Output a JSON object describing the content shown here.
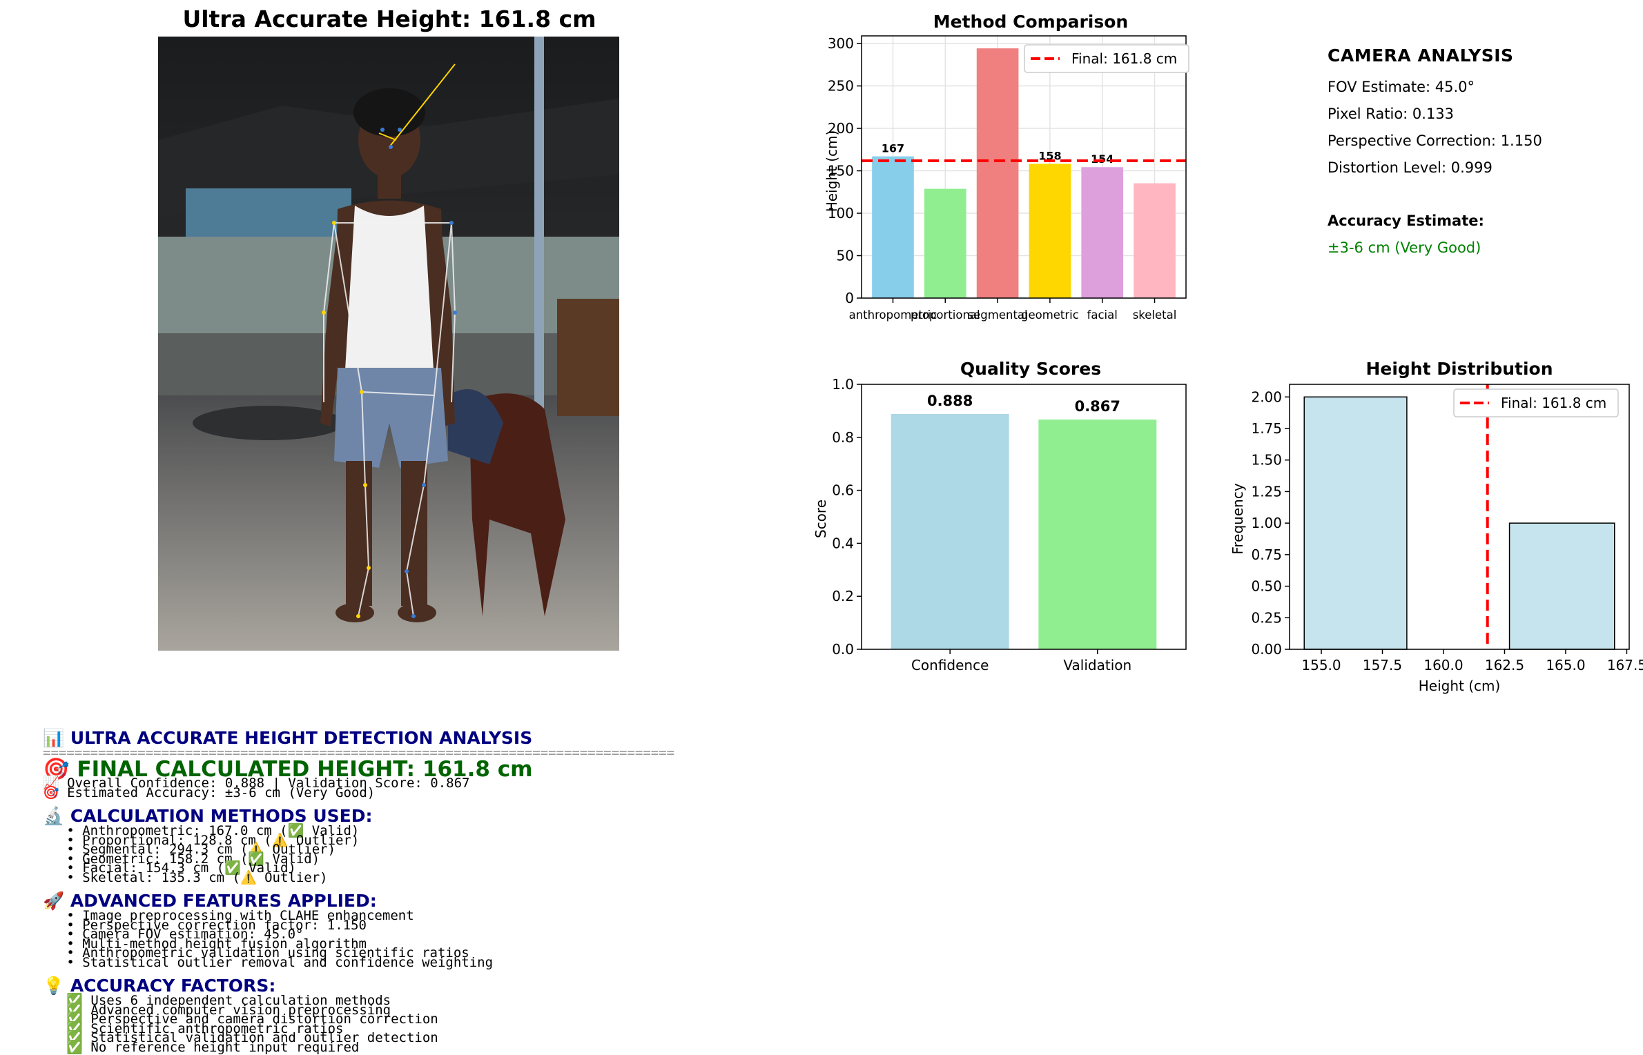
{
  "photo": {
    "title": "Ultra Accurate Height: 161.8 cm"
  },
  "colors": {
    "skyblue": "#87ceeb",
    "lightgreen": "#90ee90",
    "lightcoral": "#f08080",
    "gold": "#ffd700",
    "plum": "#dda0dd",
    "lightpink": "#ffb6c1",
    "lightblue": "#add8e6",
    "final_line": "#ff0000",
    "good_green": "#008000",
    "report_navy": "#000080",
    "report_green": "#006400"
  },
  "camera": {
    "title": "CAMERA ANALYSIS",
    "lines": [
      "FOV Estimate: 45.0°",
      "Pixel Ratio: 0.133",
      "Perspective Correction: 1.150",
      "Distortion Level: 0.999"
    ],
    "accuracy_label": "Accuracy Estimate:",
    "accuracy_value": "±3-6 cm (Very Good)"
  },
  "chart_data": [
    {
      "id": "method",
      "type": "bar",
      "title": "Method Comparison",
      "xlabel": "",
      "ylabel": "Height (cm)",
      "categories": [
        "anthropometric",
        "proportional",
        "segmental",
        "geometric",
        "facial",
        "skeletal"
      ],
      "values": [
        167.0,
        128.8,
        294.3,
        158.2,
        154.3,
        135.3
      ],
      "bar_labels": [
        "167",
        "",
        "",
        "158",
        "154",
        ""
      ],
      "colors": [
        "#87ceeb",
        "#90ee90",
        "#f08080",
        "#ffd700",
        "#dda0dd",
        "#ffb6c1"
      ],
      "ylim": [
        0,
        309
      ],
      "yticks": [
        0,
        50,
        100,
        150,
        200,
        250,
        300
      ],
      "grid": true,
      "hline": 161.8,
      "legend": "Final: 161.8 cm",
      "legend_position": "top-right"
    },
    {
      "id": "quality",
      "type": "bar",
      "title": "Quality Scores",
      "xlabel": "",
      "ylabel": "Score",
      "categories": [
        "Confidence",
        "Validation"
      ],
      "values": [
        0.888,
        0.867
      ],
      "bar_labels": [
        "0.888",
        "0.867"
      ],
      "colors": [
        "#add8e6",
        "#90ee90"
      ],
      "ylim": [
        0,
        1.0
      ],
      "yticks": [
        0.0,
        0.2,
        0.4,
        0.6,
        0.8,
        1.0
      ],
      "grid": false
    },
    {
      "id": "dist",
      "type": "bar",
      "title": "Height Distribution",
      "xlabel": "Height (cm)",
      "ylabel": "Frequency",
      "bins": [
        [
          154.3,
          158.5
        ],
        [
          158.5,
          162.7
        ],
        [
          162.7,
          167.0
        ]
      ],
      "counts": [
        2,
        0,
        1
      ],
      "xlim": [
        153.7,
        167.6
      ],
      "xticks": [
        155.0,
        157.5,
        160.0,
        162.5,
        165.0,
        167.5
      ],
      "ylim": [
        0,
        2.1
      ],
      "yticks": [
        0.0,
        0.25,
        0.5,
        0.75,
        1.0,
        1.25,
        1.5,
        1.75,
        2.0
      ],
      "vline": 161.8,
      "legend": "Final: 161.8 cm",
      "legend_position": "top-right",
      "grid": false
    }
  ],
  "report": {
    "title": "📊 ULTRA ACCURATE HEIGHT DETECTION ANALYSIS",
    "separator": "================================================================================",
    "final": "🎯 FINAL CALCULATED HEIGHT: 161.8 cm",
    "summary": [
      "📈 Overall Confidence: 0.888 | Validation Score: 0.867",
      "🎯 Estimated Accuracy: ±3-6 cm (Very Good)"
    ],
    "methods_title": "🔬 CALCULATION METHODS USED:",
    "methods": [
      "   • Anthropometric: 167.0 cm (✅ Valid)",
      "   • Proportional: 128.8 cm (⚠️ Outlier)",
      "   • Segmental: 294.3 cm (⚠️ Outlier)",
      "   • Geometric: 158.2 cm (✅ Valid)",
      "   • Facial: 154.3 cm (✅ Valid)",
      "   • Skeletal: 135.3 cm (⚠️ Outlier)"
    ],
    "features_title": "🚀 ADVANCED FEATURES APPLIED:",
    "features": [
      "   • Image preprocessing with CLAHE enhancement",
      "   • Perspective correction factor: 1.150",
      "   • Camera FOV estimation: 45.0°",
      "   • Multi-method height fusion algorithm",
      "   • Anthropometric validation using scientific ratios",
      "   • Statistical outlier removal and confidence weighting"
    ],
    "factors_title": "💡 ACCURACY FACTORS:",
    "factors": [
      "   ✅ Uses 6 independent calculation methods",
      "   ✅ Advanced computer vision preprocessing",
      "   ✅ Perspective and camera distortion correction",
      "   ✅ Scientific anthropometric ratios",
      "   ✅ Statistical validation and outlier detection",
      "   ✅ No reference height input required"
    ]
  }
}
